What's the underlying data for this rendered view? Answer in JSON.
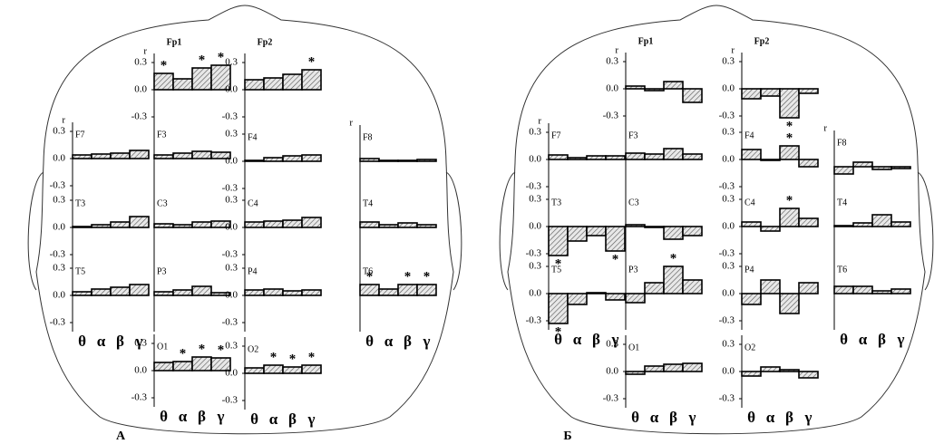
{
  "chart_data": [
    {
      "type": "bar",
      "title": "Fp1",
      "y_label": "r",
      "values": [
        0.18,
        0.12,
        0.24,
        0.27
      ],
      "annotations": [
        "*",
        null,
        "*",
        "*"
      ],
      "ylim": [
        -0.4,
        0.4
      ],
      "yticks": [
        0.3,
        {
          "value": 0,
          "label": "0.0"
        },
        -0.3
      ]
    },
    {
      "type": "bar",
      "title": "Fp2",
      "values": [
        0.11,
        0.13,
        0.17,
        0.22
      ],
      "annotations": [
        null,
        null,
        null,
        "*"
      ],
      "ylim": [
        -0.4,
        0.4
      ],
      "yticks": [
        0.3,
        {
          "value": 0,
          "label": "0.0"
        },
        -0.3
      ]
    },
    {
      "type": "bar",
      "title": "F7",
      "y_label": "r",
      "values": [
        0.04,
        0.05,
        0.06,
        0.09
      ],
      "ylim": [
        -0.4,
        0.4
      ],
      "yticks": [
        0.3,
        {
          "value": 0,
          "label": "0.0"
        },
        -0.3
      ]
    },
    {
      "type": "bar",
      "title": "F3",
      "values": [
        0.04,
        0.06,
        0.08,
        0.07
      ],
      "ylim": [
        -0.4,
        0.4
      ]
    },
    {
      "type": "bar",
      "title": "F4",
      "values": [
        0.01,
        0.04,
        0.06,
        0.07
      ],
      "ylim": [
        -0.4,
        0.4
      ],
      "yticks": [
        0.3,
        {
          "value": 0,
          "label": "0.0"
        },
        -0.3
      ]
    },
    {
      "type": "bar",
      "title": "F8",
      "y_label": "r",
      "values": [
        0.03,
        0.01,
        0.01,
        0.02
      ],
      "ylim": [
        -0.4,
        0.4
      ]
    },
    {
      "type": "bar",
      "title": "T3",
      "values": [
        0.01,
        0.03,
        0.06,
        0.12
      ],
      "ylim": [
        -0.4,
        0.4
      ],
      "yticks": [
        0.3,
        {
          "value": 0,
          "label": "0.0"
        },
        -0.3
      ]
    },
    {
      "type": "bar",
      "title": "C3",
      "values": [
        0.04,
        0.03,
        0.06,
        0.07
      ],
      "ylim": [
        -0.4,
        0.4
      ]
    },
    {
      "type": "bar",
      "title": "C4",
      "values": [
        0.06,
        0.07,
        0.08,
        0.11
      ],
      "ylim": [
        -0.4,
        0.4
      ],
      "yticks": [
        0.3,
        {
          "value": 0,
          "label": "0.0"
        },
        -0.3
      ]
    },
    {
      "type": "bar",
      "title": "T4",
      "values": [
        0.06,
        0.03,
        0.05,
        0.03
      ],
      "ylim": [
        -0.4,
        0.4
      ]
    },
    {
      "type": "bar",
      "title": "T5",
      "categories": [
        "θ",
        "α",
        "β",
        "γ"
      ],
      "values": [
        0.04,
        0.07,
        0.09,
        0.12
      ],
      "ylim": [
        -0.4,
        0.4
      ],
      "yticks": [
        0.3,
        {
          "value": 0,
          "label": "0.0"
        },
        -0.3
      ]
    },
    {
      "type": "bar",
      "title": "P3",
      "values": [
        0.04,
        0.06,
        0.1,
        0.03
      ],
      "ylim": [
        -0.4,
        0.4
      ]
    },
    {
      "type": "bar",
      "title": "P4",
      "values": [
        0.06,
        0.07,
        0.05,
        0.06
      ],
      "ylim": [
        -0.4,
        0.4
      ],
      "yticks": [
        0.3,
        {
          "value": 0,
          "label": "0.0"
        },
        -0.3
      ]
    },
    {
      "type": "bar",
      "title": "T6",
      "categories": [
        "θ",
        "α",
        "β",
        "γ"
      ],
      "values": [
        0.12,
        0.07,
        0.12,
        0.12
      ],
      "annotations": [
        "*",
        null,
        "*",
        "*"
      ],
      "ylim": [
        -0.4,
        0.4
      ]
    },
    {
      "type": "bar",
      "title": "O1",
      "categories": [
        "θ",
        "α",
        "β",
        "γ"
      ],
      "values": [
        0.09,
        0.1,
        0.15,
        0.14
      ],
      "annotations": [
        null,
        "*",
        "*",
        "*"
      ],
      "ylim": [
        -0.4,
        0.4
      ],
      "yticks": [
        0.3,
        {
          "value": 0,
          "label": "0.0"
        },
        -0.3
      ]
    },
    {
      "type": "bar",
      "title": "O2",
      "categories": [
        "θ",
        "α",
        "β",
        "γ"
      ],
      "values": [
        0.06,
        0.09,
        0.07,
        0.09
      ],
      "annotations": [
        null,
        "*",
        "*",
        "*"
      ],
      "ylim": [
        -0.4,
        0.4
      ],
      "yticks": [
        0.3,
        {
          "value": 0,
          "label": "0.0"
        },
        -0.3
      ]
    },
    {
      "type": "bar",
      "title": "Fp1",
      "y_label": "r",
      "values": [
        0.03,
        -0.02,
        0.08,
        -0.15
      ],
      "ylim": [
        -0.4,
        0.4
      ],
      "yticks": [
        0.3,
        {
          "value": 0,
          "label": "0.0"
        },
        -0.3
      ]
    },
    {
      "type": "bar",
      "title": "Fp2",
      "y_label": "r",
      "values": [
        -0.11,
        -0.08,
        -0.32,
        -0.05
      ],
      "annotations": [
        null,
        null,
        "*",
        null
      ],
      "ylim": [
        -0.4,
        0.4
      ],
      "yticks": [
        0.3,
        {
          "value": 0,
          "label": "0.0"
        },
        -0.3
      ]
    },
    {
      "type": "bar",
      "title": "F7",
      "y_label": "r",
      "values": [
        0.05,
        0.02,
        0.04,
        0.04
      ],
      "ylim": [
        -0.4,
        0.4
      ],
      "yticks": [
        0.3,
        {
          "value": 0,
          "label": "0.0"
        },
        -0.3
      ]
    },
    {
      "type": "bar",
      "title": "F3",
      "values": [
        0.07,
        0.06,
        0.12,
        0.06
      ],
      "ylim": [
        -0.4,
        0.4
      ]
    },
    {
      "type": "bar",
      "title": "F4",
      "values": [
        0.11,
        -0.01,
        0.15,
        -0.08
      ],
      "annotations": [
        null,
        null,
        "*",
        null
      ],
      "ylim": [
        -0.4,
        0.4
      ],
      "yticks": [
        0.3,
        {
          "value": 0,
          "label": "0.0"
        },
        -0.3
      ]
    },
    {
      "type": "bar",
      "title": "F8",
      "y_label": "r",
      "values": [
        -0.08,
        0.05,
        -0.03,
        -0.02
      ],
      "ylim": [
        -0.4,
        0.4
      ]
    },
    {
      "type": "bar",
      "title": "T3",
      "values": [
        -0.32,
        -0.16,
        -0.1,
        -0.27
      ],
      "annotations": [
        "*",
        null,
        null,
        "*"
      ],
      "ylim": [
        -0.4,
        0.4
      ],
      "yticks": [
        0.3,
        {
          "value": 0,
          "label": "0.0"
        },
        -0.3
      ]
    },
    {
      "type": "bar",
      "title": "C3",
      "values": [
        0.02,
        -0.01,
        -0.14,
        -0.1
      ],
      "ylim": [
        -0.4,
        0.4
      ]
    },
    {
      "type": "bar",
      "title": "C4",
      "values": [
        0.05,
        -0.05,
        0.2,
        0.09
      ],
      "annotations": [
        null,
        null,
        "*",
        null
      ],
      "ylim": [
        -0.4,
        0.4
      ],
      "yticks": [
        0.3,
        {
          "value": 0,
          "label": "0.0"
        },
        -0.3
      ]
    },
    {
      "type": "bar",
      "title": "T4",
      "values": [
        0.01,
        0.04,
        0.13,
        0.05
      ],
      "ylim": [
        -0.4,
        0.4
      ]
    },
    {
      "type": "bar",
      "title": "T5",
      "categories": [
        "θ",
        "α",
        "β",
        "γ"
      ],
      "values": [
        -0.33,
        -0.12,
        0.01,
        -0.07
      ],
      "annotations": [
        "*",
        null,
        null,
        null
      ],
      "ylim": [
        -0.4,
        0.4
      ],
      "yticks": [
        0.3,
        {
          "value": 0,
          "label": "0.0"
        },
        -0.3
      ]
    },
    {
      "type": "bar",
      "title": "P3",
      "values": [
        -0.1,
        0.12,
        0.3,
        0.15
      ],
      "annotations": [
        null,
        null,
        "*",
        null
      ],
      "ylim": [
        -0.4,
        0.4
      ]
    },
    {
      "type": "bar",
      "title": "P4",
      "values": [
        -0.12,
        0.15,
        -0.22,
        0.12
      ],
      "ylim": [
        -0.4,
        0.4
      ],
      "yticks": [
        0.3,
        {
          "value": 0,
          "label": "0.0"
        },
        -0.3
      ]
    },
    {
      "type": "bar",
      "title": "T6",
      "categories": [
        "θ",
        "α",
        "β",
        "γ"
      ],
      "values": [
        0.08,
        0.08,
        0.03,
        0.05
      ],
      "ylim": [
        -0.4,
        0.4
      ]
    },
    {
      "type": "bar",
      "title": "O1",
      "categories": [
        "θ",
        "α",
        "β",
        "γ"
      ],
      "values": [
        -0.03,
        0.06,
        0.08,
        0.09
      ],
      "ylim": [
        -0.4,
        0.4
      ],
      "yticks": [
        0.3,
        {
          "value": 0,
          "label": "0.0"
        },
        -0.3
      ]
    },
    {
      "type": "bar",
      "title": "O2",
      "categories": [
        "θ",
        "α",
        "β",
        "γ"
      ],
      "values": [
        -0.05,
        0.05,
        0.02,
        -0.07
      ],
      "ylim": [
        -0.4,
        0.4
      ],
      "yticks": [
        0.3,
        {
          "value": 0,
          "label": "0.0"
        },
        -0.3
      ]
    }
  ],
  "panel_labels": [
    "А",
    "Б"
  ]
}
